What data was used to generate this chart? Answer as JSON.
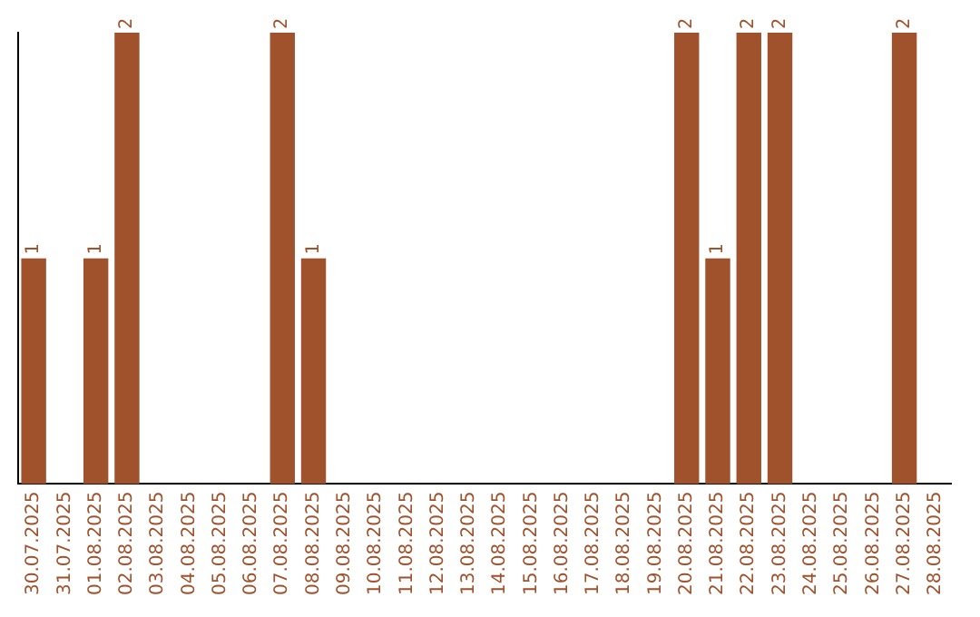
{
  "chart_data": {
    "type": "bar",
    "categories": [
      "30.07.2025",
      "31.07.2025",
      "01.08.2025",
      "02.08.2025",
      "03.08.2025",
      "04.08.2025",
      "05.08.2025",
      "06.08.2025",
      "07.08.2025",
      "08.08.2025",
      "09.08.2025",
      "10.08.2025",
      "11.08.2025",
      "12.08.2025",
      "13.08.2025",
      "14.08.2025",
      "15.08.2025",
      "16.08.2025",
      "17.08.2025",
      "18.08.2025",
      "19.08.2025",
      "20.08.2025",
      "21.08.2025",
      "22.08.2025",
      "23.08.2025",
      "24.08.2025",
      "25.08.2025",
      "26.08.2025",
      "27.08.2025",
      "28.08.2025"
    ],
    "values": [
      1,
      0,
      1,
      2,
      0,
      0,
      0,
      0,
      2,
      1,
      0,
      0,
      0,
      0,
      0,
      0,
      0,
      0,
      0,
      0,
      0,
      2,
      1,
      2,
      2,
      0,
      0,
      0,
      2,
      0
    ],
    "value_labels": [
      "1",
      null,
      "1",
      "2",
      null,
      null,
      null,
      null,
      "2",
      "1",
      null,
      null,
      null,
      null,
      null,
      null,
      null,
      null,
      null,
      null,
      null,
      "2",
      "1",
      "2",
      "2",
      null,
      null,
      null,
      "2",
      null
    ],
    "color": "#a0522d",
    "tick_labels": "x",
    "grid": false,
    "legend": false
  }
}
